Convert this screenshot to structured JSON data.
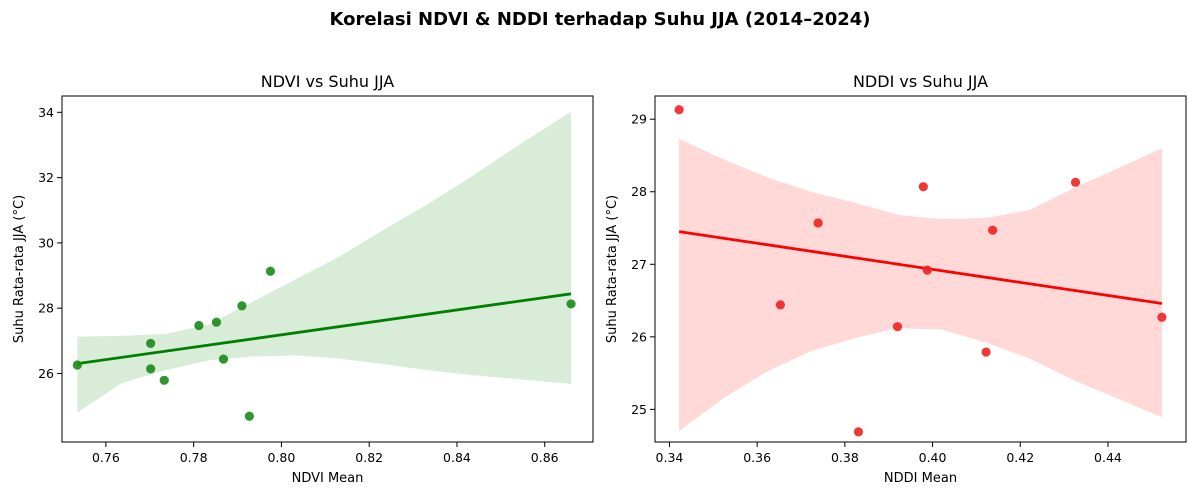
{
  "figure": {
    "title": "Korelasi NDVI & NDDI terhadap Suhu JJA (2014–2024)"
  },
  "chart_data": [
    {
      "type": "scatter",
      "title": "NDVI vs Suhu JJA",
      "xlabel": "NDVI Mean",
      "ylabel": "Suhu Rata-rata JJA (°C)",
      "xlim": [
        0.75,
        0.871
      ],
      "ylim": [
        23.9,
        34.5
      ],
      "xticks": [
        0.76,
        0.78,
        0.8,
        0.82,
        0.84,
        0.86
      ],
      "xtick_labels": [
        "0.76",
        "0.78",
        "0.80",
        "0.82",
        "0.84",
        "0.86"
      ],
      "yticks": [
        26,
        28,
        30,
        32,
        34
      ],
      "ytick_labels": [
        "26",
        "28",
        "30",
        "32",
        "34"
      ],
      "grid": false,
      "point_color": "#1a8a1a",
      "line_color": "#008000",
      "band_color": "#d8ecd8",
      "points": [
        {
          "x": 0.7535,
          "y": 26.26
        },
        {
          "x": 0.7702,
          "y": 26.92
        },
        {
          "x": 0.7702,
          "y": 26.14
        },
        {
          "x": 0.7733,
          "y": 25.79
        },
        {
          "x": 0.7812,
          "y": 27.47
        },
        {
          "x": 0.7852,
          "y": 27.57
        },
        {
          "x": 0.7868,
          "y": 26.44
        },
        {
          "x": 0.791,
          "y": 28.07
        },
        {
          "x": 0.7927,
          "y": 24.69
        },
        {
          "x": 0.7975,
          "y": 29.13
        },
        {
          "x": 0.866,
          "y": 28.13
        }
      ],
      "regression": {
        "x": [
          0.7535,
          0.866
        ],
        "y": [
          26.3,
          28.44
        ]
      },
      "confidence_band": {
        "x": [
          0.7535,
          0.7635,
          0.7735,
          0.7835,
          0.7935,
          0.8035,
          0.8135,
          0.8235,
          0.8335,
          0.8435,
          0.8535,
          0.866
        ],
        "upper": [
          27.13,
          27.15,
          27.21,
          27.5,
          28.2,
          28.9,
          29.6,
          30.42,
          31.2,
          32.05,
          32.95,
          34.02
        ],
        "lower": [
          24.8,
          25.7,
          26.1,
          26.4,
          26.52,
          26.55,
          26.45,
          26.28,
          26.1,
          25.95,
          25.83,
          25.68
        ]
      }
    },
    {
      "type": "scatter",
      "title": "NDDI vs Suhu JJA",
      "xlabel": "NDDI Mean",
      "ylabel": "Suhu Rata-rata JJA (°C)",
      "xlim": [
        0.3367,
        0.4578
      ],
      "ylim": [
        24.55,
        29.32
      ],
      "xticks": [
        0.34,
        0.36,
        0.38,
        0.4,
        0.42,
        0.44
      ],
      "xtick_labels": [
        "0.34",
        "0.36",
        "0.38",
        "0.40",
        "0.42",
        "0.44"
      ],
      "yticks": [
        25,
        26,
        27,
        28,
        29
      ],
      "ytick_labels": [
        "25",
        "26",
        "27",
        "28",
        "29"
      ],
      "grid": false,
      "point_color": "#ee2222",
      "line_color": "#ff0000",
      "band_color": "#ffd8d8",
      "points": [
        {
          "x": 0.3422,
          "y": 29.13
        },
        {
          "x": 0.3653,
          "y": 26.44
        },
        {
          "x": 0.3739,
          "y": 27.57
        },
        {
          "x": 0.3831,
          "y": 24.69
        },
        {
          "x": 0.392,
          "y": 26.14
        },
        {
          "x": 0.3979,
          "y": 28.07
        },
        {
          "x": 0.3988,
          "y": 26.92
        },
        {
          "x": 0.4122,
          "y": 25.79
        },
        {
          "x": 0.4137,
          "y": 27.47
        },
        {
          "x": 0.4326,
          "y": 28.13
        },
        {
          "x": 0.4523,
          "y": 26.27
        }
      ],
      "regression": {
        "x": [
          0.3422,
          0.4523
        ],
        "y": [
          27.45,
          26.46
        ]
      },
      "confidence_band": {
        "x": [
          0.3422,
          0.3522,
          0.3622,
          0.3722,
          0.3822,
          0.3922,
          0.4022,
          0.4122,
          0.4222,
          0.4322,
          0.4422,
          0.4523
        ],
        "upper": [
          28.73,
          28.45,
          28.2,
          28.0,
          27.85,
          27.68,
          27.62,
          27.64,
          27.75,
          28.05,
          28.32,
          28.6
        ],
        "lower": [
          24.7,
          25.15,
          25.52,
          25.8,
          25.98,
          26.12,
          26.1,
          25.92,
          25.7,
          25.4,
          25.15,
          24.89
        ]
      }
    }
  ]
}
